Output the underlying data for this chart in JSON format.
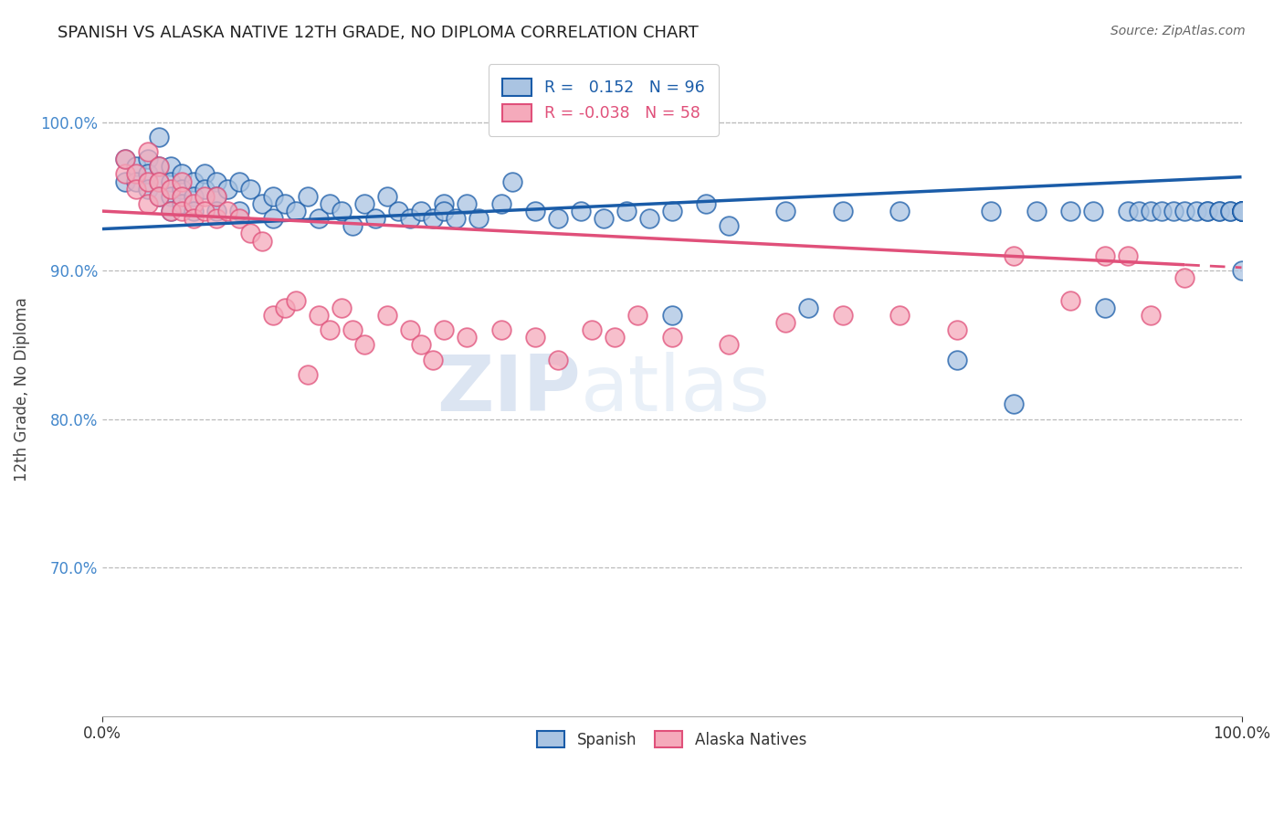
{
  "title": "SPANISH VS ALASKA NATIVE 12TH GRADE, NO DIPLOMA CORRELATION CHART",
  "source": "Source: ZipAtlas.com",
  "ylabel": "12th Grade, No Diploma",
  "xlabel": "",
  "xlim": [
    0.0,
    1.0
  ],
  "ylim": [
    0.6,
    1.04
  ],
  "yticks": [
    0.7,
    0.8,
    0.9,
    1.0
  ],
  "ytick_labels": [
    "70.0%",
    "80.0%",
    "90.0%",
    "100.0%"
  ],
  "xticks": [
    0.0,
    1.0
  ],
  "xtick_labels": [
    "0.0%",
    "100.0%"
  ],
  "blue_R": 0.152,
  "blue_N": 96,
  "pink_R": -0.038,
  "pink_N": 58,
  "blue_color": "#aac4e2",
  "pink_color": "#f5aabb",
  "blue_line_color": "#1a5ca8",
  "pink_line_color": "#e0507a",
  "watermark_zip": "ZIP",
  "watermark_atlas": "atlas",
  "blue_intercept": 0.928,
  "blue_slope": 0.035,
  "pink_intercept": 0.94,
  "pink_slope": -0.038,
  "scatter_blue_x": [
    0.02,
    0.02,
    0.03,
    0.03,
    0.04,
    0.04,
    0.04,
    0.05,
    0.05,
    0.05,
    0.05,
    0.06,
    0.06,
    0.06,
    0.06,
    0.07,
    0.07,
    0.07,
    0.08,
    0.08,
    0.08,
    0.09,
    0.09,
    0.1,
    0.1,
    0.1,
    0.11,
    0.12,
    0.12,
    0.13,
    0.14,
    0.15,
    0.15,
    0.16,
    0.17,
    0.18,
    0.19,
    0.2,
    0.21,
    0.22,
    0.23,
    0.24,
    0.25,
    0.26,
    0.27,
    0.28,
    0.29,
    0.3,
    0.3,
    0.31,
    0.32,
    0.33,
    0.35,
    0.36,
    0.38,
    0.4,
    0.42,
    0.44,
    0.46,
    0.48,
    0.5,
    0.53,
    0.55,
    0.6,
    0.62,
    0.65,
    0.7,
    0.75,
    0.78,
    0.8,
    0.82,
    0.85,
    0.87,
    0.88,
    0.9,
    0.91,
    0.92,
    0.93,
    0.94,
    0.95,
    0.96,
    0.97,
    0.97,
    0.98,
    0.98,
    0.99,
    0.99,
    1.0,
    1.0,
    1.0,
    1.0,
    1.0,
    1.0,
    1.0,
    1.0,
    0.5
  ],
  "scatter_blue_y": [
    0.975,
    0.96,
    0.97,
    0.96,
    0.975,
    0.965,
    0.955,
    0.97,
    0.96,
    0.99,
    0.95,
    0.97,
    0.96,
    0.95,
    0.94,
    0.965,
    0.955,
    0.945,
    0.96,
    0.95,
    0.94,
    0.965,
    0.955,
    0.96,
    0.95,
    0.94,
    0.955,
    0.96,
    0.94,
    0.955,
    0.945,
    0.95,
    0.935,
    0.945,
    0.94,
    0.95,
    0.935,
    0.945,
    0.94,
    0.93,
    0.945,
    0.935,
    0.95,
    0.94,
    0.935,
    0.94,
    0.935,
    0.945,
    0.94,
    0.935,
    0.945,
    0.935,
    0.945,
    0.96,
    0.94,
    0.935,
    0.94,
    0.935,
    0.94,
    0.935,
    0.94,
    0.945,
    0.93,
    0.94,
    0.875,
    0.94,
    0.94,
    0.84,
    0.94,
    0.81,
    0.94,
    0.94,
    0.94,
    0.875,
    0.94,
    0.94,
    0.94,
    0.94,
    0.94,
    0.94,
    0.94,
    0.94,
    0.94,
    0.94,
    0.94,
    0.94,
    0.94,
    0.94,
    0.94,
    0.94,
    0.94,
    0.94,
    0.9,
    0.94,
    0.94,
    0.87
  ],
  "scatter_pink_x": [
    0.02,
    0.02,
    0.03,
    0.03,
    0.04,
    0.04,
    0.04,
    0.05,
    0.05,
    0.05,
    0.06,
    0.06,
    0.07,
    0.07,
    0.07,
    0.08,
    0.08,
    0.09,
    0.09,
    0.1,
    0.1,
    0.11,
    0.12,
    0.13,
    0.14,
    0.15,
    0.16,
    0.17,
    0.18,
    0.19,
    0.2,
    0.21,
    0.22,
    0.23,
    0.25,
    0.27,
    0.28,
    0.29,
    0.3,
    0.32,
    0.35,
    0.38,
    0.4,
    0.43,
    0.45,
    0.47,
    0.5,
    0.55,
    0.6,
    0.65,
    0.7,
    0.75,
    0.8,
    0.85,
    0.88,
    0.9,
    0.92,
    0.95
  ],
  "scatter_pink_y": [
    0.965,
    0.975,
    0.965,
    0.955,
    0.98,
    0.96,
    0.945,
    0.97,
    0.96,
    0.95,
    0.955,
    0.94,
    0.96,
    0.95,
    0.94,
    0.945,
    0.935,
    0.95,
    0.94,
    0.95,
    0.935,
    0.94,
    0.935,
    0.925,
    0.92,
    0.87,
    0.875,
    0.88,
    0.83,
    0.87,
    0.86,
    0.875,
    0.86,
    0.85,
    0.87,
    0.86,
    0.85,
    0.84,
    0.86,
    0.855,
    0.86,
    0.855,
    0.84,
    0.86,
    0.855,
    0.87,
    0.855,
    0.85,
    0.865,
    0.87,
    0.87,
    0.86,
    0.91,
    0.88,
    0.91,
    0.91,
    0.87,
    0.895
  ]
}
